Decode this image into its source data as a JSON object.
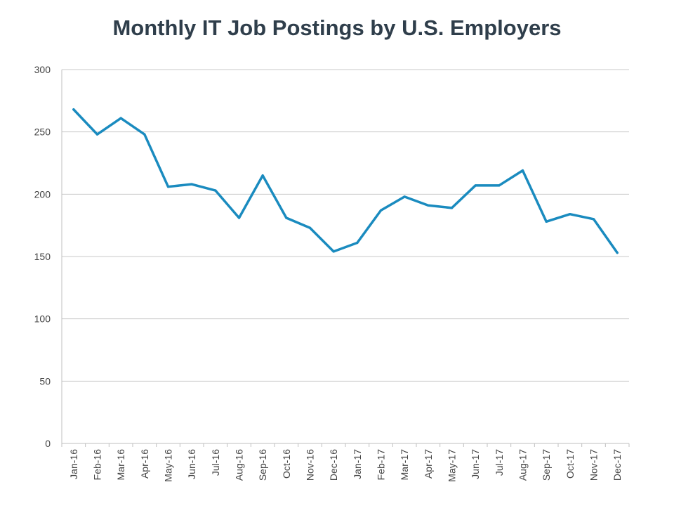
{
  "chart_data": {
    "type": "line",
    "title": "Monthly IT Job Postings by U.S. Employers",
    "xlabel": "",
    "ylabel": "",
    "ylim": [
      0,
      300
    ],
    "yticks": [
      0,
      50,
      100,
      150,
      200,
      250,
      300
    ],
    "grid": true,
    "legend": "none",
    "categories": [
      "Jan-16",
      "Feb-16",
      "Mar-16",
      "Apr-16",
      "May-16",
      "Jun-16",
      "Jul-16",
      "Aug-16",
      "Sep-16",
      "Oct-16",
      "Nov-16",
      "Dec-16",
      "Jan-17",
      "Feb-17",
      "Mar-17",
      "Apr-17",
      "May-17",
      "Jun-17",
      "Jul-17",
      "Aug-17",
      "Sep-17",
      "Oct-17",
      "Nov-17",
      "Dec-17"
    ],
    "series": [
      {
        "values": [
          268,
          248,
          261,
          248,
          206,
          208,
          203,
          181,
          215,
          181,
          173,
          154,
          161,
          187,
          198,
          191,
          189,
          207,
          207,
          219,
          178,
          184,
          180,
          153
        ],
        "color": "#1a8bbf"
      }
    ],
    "colors": {
      "grid": "#c9c9c9",
      "axis": "#bfbfbf",
      "title": "#2f3e4b"
    }
  }
}
